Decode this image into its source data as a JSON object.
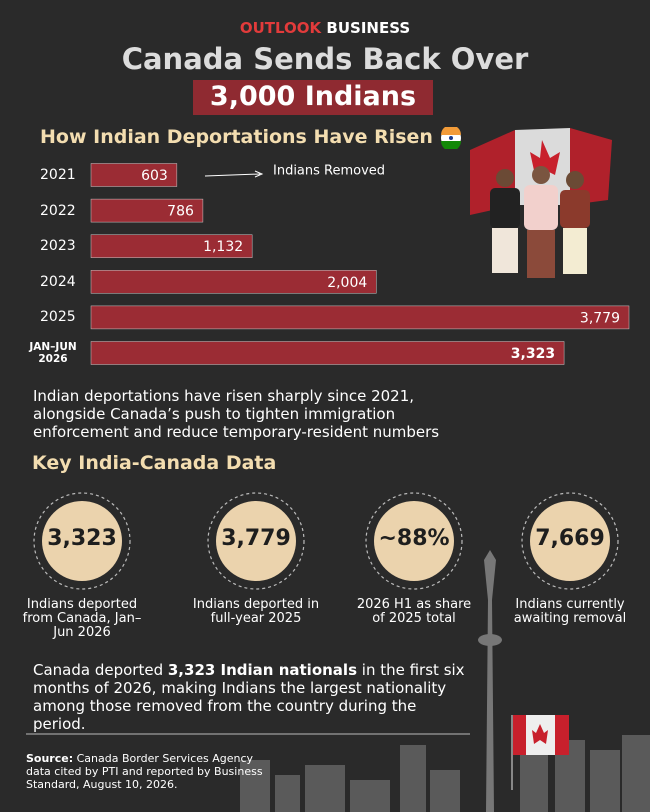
{
  "header": {
    "brand": "OUTLOOK",
    "brand_suffix": "BUSINESS",
    "title": "Canada Sends Back Over",
    "highlight": "3,000 Indians"
  },
  "chart_data": {
    "type": "bar",
    "orientation": "horizontal",
    "title": "How Indian Deportations Have Risen",
    "categories": [
      "2021",
      "2022",
      "2023",
      "2024",
      "2025",
      "JAN–JUN 2026"
    ],
    "values": [
      603,
      786,
      1132,
      2004,
      3779,
      3323
    ],
    "value_labels": [
      "603",
      "786",
      "1,132",
      "2,004",
      "3,779",
      "3,323"
    ],
    "color": "#9b2c34",
    "annotation": "Indians Removed"
  },
  "summary": "Indian deportations have risen sharply since 2021, alongside Canada’s push to tighten immigration enforcement and reduce temporary-resident numbers",
  "key_data": {
    "title": "Key India-Canada Data",
    "stats": [
      {
        "value": "3,323",
        "label": "Indians deported from Canada, Jan–Jun 2026"
      },
      {
        "value": "3,779",
        "label": "Indians deported in full-year 2025"
      },
      {
        "value": "~88%",
        "label": "2026 H1 as share of 2025 total"
      },
      {
        "value": "7,669",
        "label": "Indians currently awaiting removal"
      }
    ]
  },
  "closing": {
    "before": "Canada deported",
    "bold": "3,323 Indian nationals",
    "after": "in the first six months of 2026, making Indians the largest nationality among those removed from the country during the period."
  },
  "source": {
    "label": "Source:",
    "text": "Canada Border Services Agency data cited by PTI and reported by Business Standard, August 10, 2026."
  }
}
